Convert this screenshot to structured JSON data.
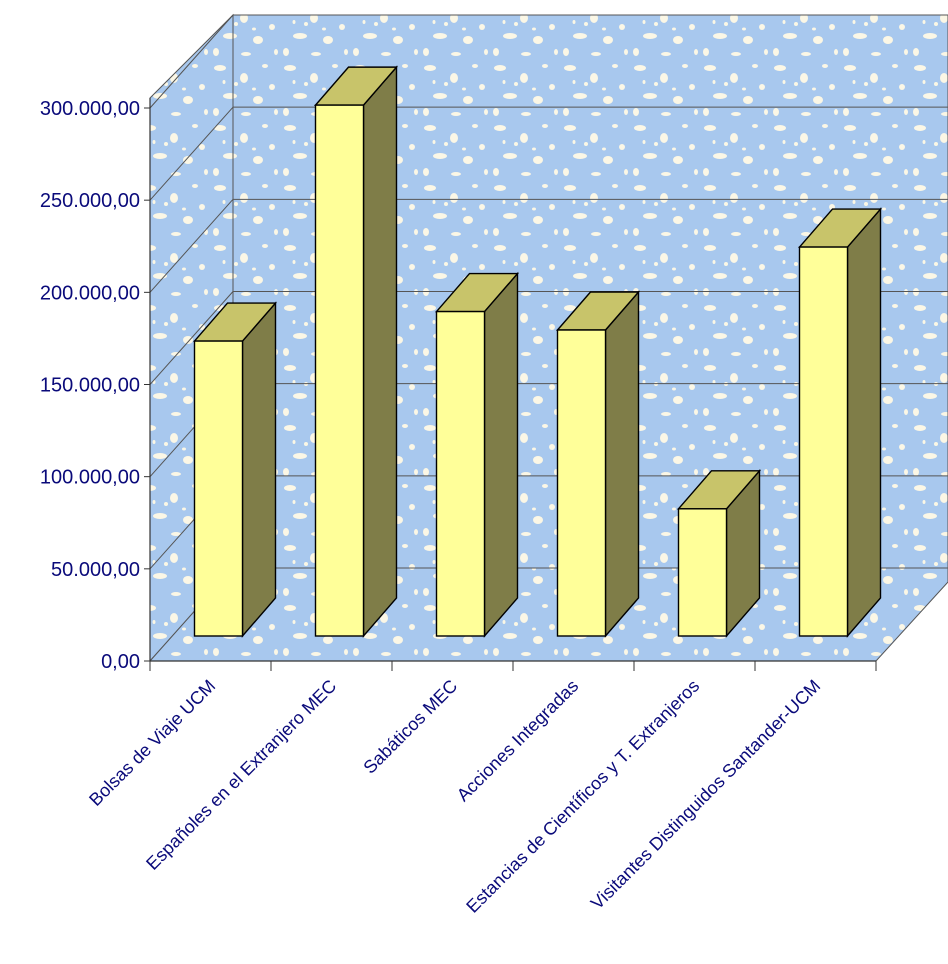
{
  "chart_data": {
    "type": "bar",
    "three_d": true,
    "title": "",
    "xlabel": "",
    "ylabel": "",
    "categories": [
      "Bolsas de Viaje UCM",
      "Españoles en el Extranjero MEC",
      "Sabáticos MEC",
      "Acciones Integradas",
      "Estancias de Científicos y T. Extranjeros",
      "Visitantes Distinguidos Santander-UCM"
    ],
    "values": [
      160000,
      288000,
      176000,
      166000,
      69000,
      211000
    ],
    "ylim": [
      0,
      300000
    ],
    "yticks": [
      0,
      50000,
      100000,
      150000,
      200000,
      250000,
      300000
    ],
    "ytick_labels": [
      "0,00",
      "50.000,00",
      "100.000,00",
      "150.000,00",
      "200.000,00",
      "250.000,00",
      "300.000,00"
    ],
    "grid": true,
    "legend": "none",
    "colors": {
      "bar_front": "#ffff99",
      "bar_top": "#c8c46a",
      "bar_side": "#7f7d48",
      "background": "#a8c8ee",
      "background_speckle": "#fbf7e6",
      "gridline": "#555555",
      "axis_text": "#0a0a7a"
    }
  }
}
